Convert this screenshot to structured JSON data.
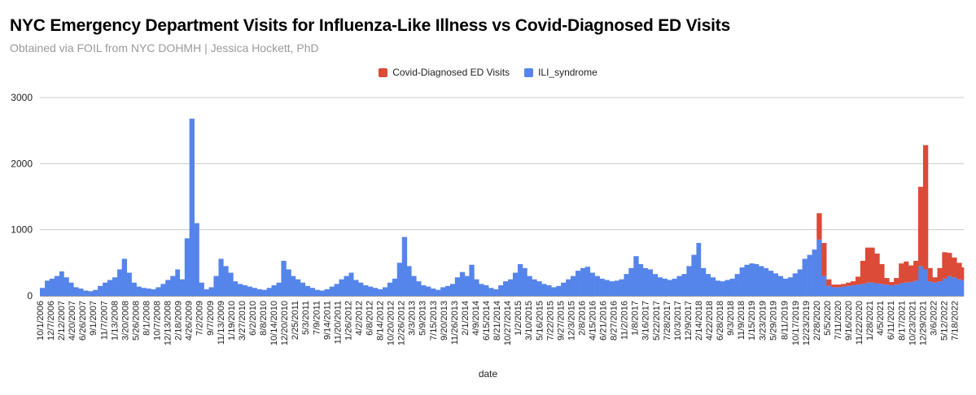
{
  "chart_data": {
    "type": "area",
    "stacked": true,
    "title": "NYC Emergency Department Visits for Influenza-Like Illness vs Covid-Diagnosed ED Visits",
    "subtitle": "Obtained via FOIL from NYC DOHMH | Jessica Hockett, PhD",
    "xlabel": "date",
    "ylabel": "",
    "ylim": [
      0,
      3000
    ],
    "y_ticks": [
      "0",
      "1000",
      "2000",
      "3000"
    ],
    "grid": true,
    "legend_position": "top",
    "x_range": [
      "2006-10-01",
      "2022-09-15"
    ],
    "x_tick_labels": [
      "10/1/2006",
      "12/7/2006",
      "2/12/2007",
      "4/20/2007",
      "6/26/2007",
      "9/1/2007",
      "11/7/2007",
      "1/13/2008",
      "3/20/2008",
      "5/26/2008",
      "8/1/2008",
      "10/7/2008",
      "12/13/2008",
      "2/18/2009",
      "4/26/2009",
      "7/2/2009",
      "9/7/2009",
      "11/13/2009",
      "1/19/2010",
      "3/27/2010",
      "6/2/2010",
      "8/8/2010",
      "10/14/2010",
      "12/20/2010",
      "2/25/2011",
      "5/3/2011",
      "7/9/2011",
      "9/14/2011",
      "11/20/2011",
      "1/26/2012",
      "4/2/2012",
      "6/8/2012",
      "8/14/2012",
      "10/20/2012",
      "12/26/2012",
      "3/3/2013",
      "5/9/2013",
      "7/15/2013",
      "9/20/2013",
      "11/26/2013",
      "2/1/2014",
      "4/9/2014",
      "6/15/2014",
      "8/21/2014",
      "10/27/2014",
      "1/2/2015",
      "3/10/2015",
      "5/16/2015",
      "7/22/2015",
      "9/27/2015",
      "12/3/2015",
      "2/8/2016",
      "4/15/2016",
      "6/21/2016",
      "8/27/2016",
      "11/2/2016",
      "1/8/2017",
      "3/16/2017",
      "5/22/2017",
      "7/28/2017",
      "10/3/2017",
      "12/9/2017",
      "2/14/2018",
      "4/22/2018",
      "6/28/2018",
      "9/3/2018",
      "11/9/2018",
      "1/15/2019",
      "3/23/2019",
      "5/29/2019",
      "8/11/2019",
      "10/17/2019",
      "12/23/2019",
      "2/28/2020",
      "5/5/2020",
      "7/11/2020",
      "9/16/2020",
      "11/22/2020",
      "1/28/2021",
      "4/5/2021",
      "6/11/2021",
      "8/17/2021",
      "10/23/2021",
      "12/29/2021",
      "3/6/2022",
      "5/12/2022",
      "7/18/2022"
    ],
    "series": [
      {
        "name": "ILI_syndrome",
        "color": "#5585ea",
        "start_month": "2006-10",
        "step": "month",
        "values": [
          120,
          230,
          260,
          300,
          370,
          280,
          200,
          130,
          110,
          80,
          70,
          90,
          150,
          200,
          240,
          280,
          400,
          560,
          350,
          200,
          140,
          120,
          110,
          100,
          130,
          180,
          240,
          300,
          400,
          250,
          870,
          2680,
          1100,
          200,
          100,
          130,
          300,
          560,
          450,
          350,
          220,
          180,
          160,
          140,
          120,
          100,
          90,
          120,
          160,
          200,
          530,
          400,
          300,
          250,
          200,
          150,
          120,
          90,
          80,
          100,
          140,
          180,
          250,
          300,
          350,
          240,
          200,
          160,
          140,
          120,
          100,
          130,
          200,
          260,
          500,
          890,
          450,
          300,
          220,
          160,
          140,
          110,
          90,
          130,
          150,
          180,
          280,
          360,
          300,
          470,
          250,
          180,
          160,
          120,
          100,
          160,
          220,
          250,
          350,
          480,
          420,
          300,
          250,
          220,
          180,
          160,
          130,
          150,
          200,
          250,
          300,
          380,
          420,
          440,
          350,
          300,
          260,
          240,
          220,
          230,
          250,
          330,
          420,
          600,
          480,
          420,
          400,
          330,
          280,
          260,
          240,
          260,
          300,
          330,
          450,
          620,
          800,
          420,
          330,
          280,
          230,
          220,
          240,
          260,
          330,
          430,
          470,
          490,
          480,
          450,
          420,
          380,
          340,
          300,
          260,
          280,
          340,
          400,
          560,
          620,
          700,
          850,
          300,
          150,
          130,
          130,
          140,
          150,
          160,
          170,
          180,
          200,
          200,
          190,
          180,
          170,
          160,
          170,
          190,
          200,
          210,
          230,
          450,
          400,
          220,
          200,
          220,
          260,
          300,
          280,
          250,
          230
        ]
      },
      {
        "name": "Covid-Diagnosed ED Visits",
        "color": "#dc4a38",
        "start_month": "2020-03",
        "step": "month",
        "values": [
          400,
          500,
          100,
          40,
          40,
          40,
          50,
          60,
          120,
          350,
          530,
          530,
          450,
          300,
          100,
          50,
          100,
          300,
          320,
          250,
          300,
          1200,
          1880,
          200,
          80,
          200,
          400,
          350,
          300,
          250,
          200
        ]
      }
    ]
  }
}
